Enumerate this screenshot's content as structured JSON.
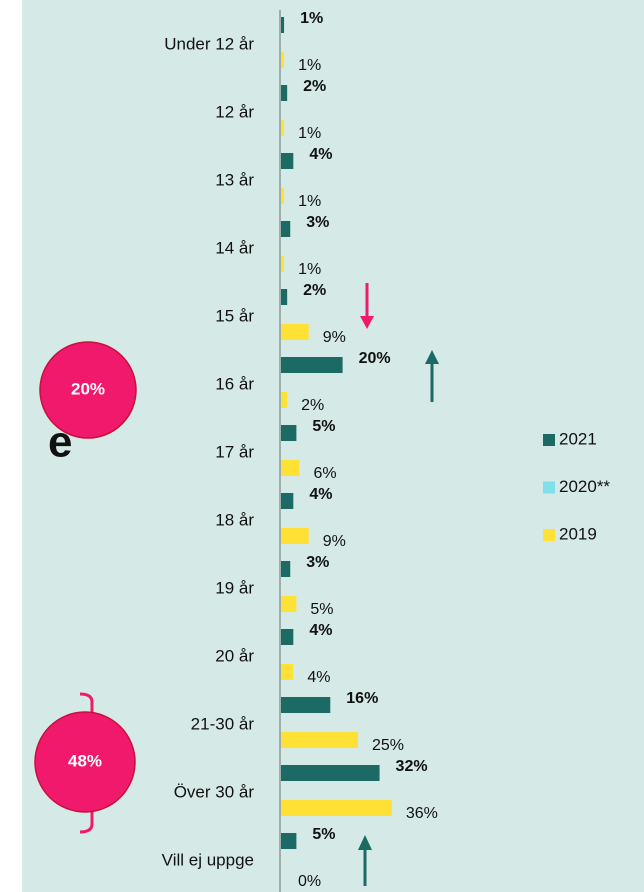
{
  "chart_data": {
    "type": "bar",
    "orientation": "horizontal",
    "categories": [
      "Under 12 år",
      "12 år",
      "13 år",
      "14 år",
      "15 år",
      "16 år",
      "17 år",
      "18 år",
      "19 år",
      "20 år",
      "21-30 år",
      "Över 30 år",
      "Vill ej uppge"
    ],
    "series": [
      {
        "name": "2021",
        "color": "#1b6a65",
        "bold": true,
        "values": [
          1,
          2,
          4,
          3,
          2,
          20,
          5,
          4,
          3,
          4,
          16,
          32,
          5
        ],
        "value_labels": [
          "1%",
          "2%",
          "4%",
          "3%",
          "2%",
          "20%",
          "5%",
          "4%",
          "3%",
          "4%",
          "16%",
          "32%",
          "5%"
        ]
      },
      {
        "name": "2020**",
        "color": "#7fe0e9",
        "values": [
          null,
          null,
          null,
          null,
          null,
          null,
          null,
          null,
          null,
          null,
          null,
          null,
          null
        ]
      },
      {
        "name": "2019",
        "color": "#ffe135",
        "values": [
          1,
          1,
          1,
          1,
          9,
          2,
          6,
          9,
          5,
          4,
          25,
          36,
          0
        ],
        "value_labels": [
          "1%",
          "1%",
          "1%",
          "1%",
          "9%",
          "2%",
          "6%",
          "9%",
          "5%",
          "4%",
          "25%",
          "36%",
          "0%"
        ]
      }
    ],
    "annotations": [
      "20%",
      "48%"
    ],
    "background_fragment": "e"
  }
}
